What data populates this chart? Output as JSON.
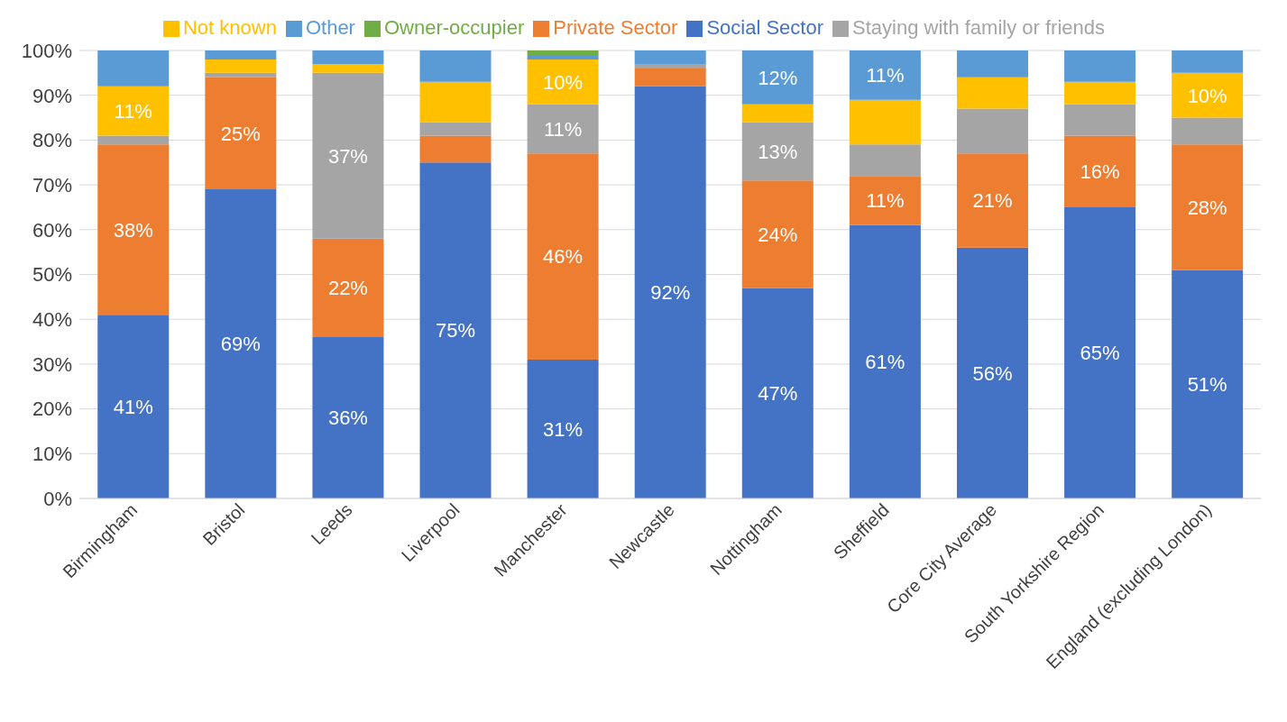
{
  "chart_data": {
    "type": "bar",
    "stacked": true,
    "categories": [
      "Birmingham",
      "Bristol",
      "Leeds",
      "Liverpool",
      "Manchester",
      "Newcastle",
      "Nottingham",
      "Sheffield",
      "Core City Average",
      "South Yorkshire Region",
      "England (excluding London)"
    ],
    "series": [
      {
        "name": "Social Sector",
        "color": "#4472c4",
        "values": [
          41,
          69,
          36,
          75,
          31,
          92,
          47,
          61,
          56,
          65,
          51
        ],
        "value_labels": [
          "41%",
          "69%",
          "36%",
          "75%",
          "31%",
          "92%",
          "47%",
          "61%",
          "56%",
          "65%",
          "51%"
        ]
      },
      {
        "name": "Private Sector",
        "color": "#ed7d31",
        "values": [
          38,
          25,
          22,
          6,
          46,
          4,
          24,
          11,
          21,
          16,
          28
        ],
        "value_labels": [
          "38%",
          "25%",
          "22%",
          null,
          "46%",
          null,
          "24%",
          "11%",
          "21%",
          "16%",
          "28%"
        ]
      },
      {
        "name": "Staying with family or friends",
        "color": "#a5a5a5",
        "values": [
          2,
          1,
          37,
          3,
          11,
          1,
          13,
          7,
          10,
          7,
          6
        ],
        "value_labels": [
          null,
          null,
          "37%",
          null,
          "11%",
          null,
          "13%",
          null,
          null,
          null,
          null
        ]
      },
      {
        "name": "Not known",
        "color": "#ffc000",
        "values": [
          11,
          3,
          2,
          9,
          10,
          0,
          4,
          10,
          7,
          5,
          10
        ],
        "value_labels": [
          "11%",
          null,
          null,
          null,
          "10%",
          null,
          null,
          null,
          null,
          null,
          "10%"
        ]
      },
      {
        "name": "Other",
        "color": "#5b9bd5",
        "values": [
          8,
          2,
          3,
          7,
          1,
          3,
          12,
          11,
          6,
          7,
          5
        ],
        "value_labels": [
          null,
          null,
          null,
          null,
          null,
          null,
          "12%",
          "11%",
          null,
          null,
          null
        ]
      },
      {
        "name": "Owner-occupier",
        "color": "#70ad47",
        "values": [
          0,
          0,
          0,
          0,
          1,
          0,
          0,
          0,
          0,
          0,
          0
        ]
      }
    ],
    "ylim": [
      0,
      100
    ],
    "yticks": [
      {
        "value": 0,
        "label": "0%"
      },
      {
        "value": 10,
        "label": "10%"
      },
      {
        "value": 20,
        "label": "20%"
      },
      {
        "value": 30,
        "label": "30%"
      },
      {
        "value": 40,
        "label": "40%"
      },
      {
        "value": 50,
        "label": "50%"
      },
      {
        "value": 60,
        "label": "60%"
      },
      {
        "value": 70,
        "label": "70%"
      },
      {
        "value": 80,
        "label": "80%"
      },
      {
        "value": 90,
        "label": "90%"
      },
      {
        "value": 100,
        "label": "100%"
      }
    ],
    "grid": "y",
    "legend": "top"
  }
}
